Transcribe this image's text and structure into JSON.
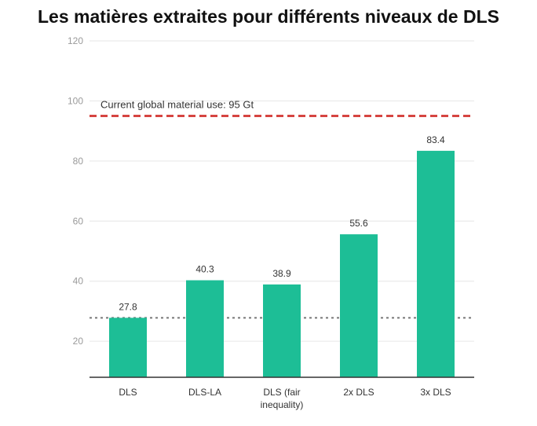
{
  "chart_data": {
    "type": "bar",
    "title": "Les matières extraites pour différents niveaux de DLS",
    "xlabel": "",
    "ylabel": "",
    "categories": [
      [
        "DLS"
      ],
      [
        "DLS-LA"
      ],
      [
        "DLS (fair",
        "inequality)"
      ],
      [
        "2x DLS"
      ],
      [
        "3x DLS"
      ]
    ],
    "values": [
      27.8,
      40.3,
      38.9,
      55.6,
      83.4
    ],
    "value_labels": [
      "27.8",
      "40.3",
      "38.9",
      "55.6",
      "83.4"
    ],
    "yticks": [
      "20",
      "40",
      "60",
      "80",
      "100",
      "120"
    ],
    "ylim": [
      8,
      120
    ],
    "reference_lines": [
      {
        "value": 95,
        "label": "Current global material use: 95 Gt",
        "style": "dashed",
        "color": "#d64541"
      },
      {
        "value": 27.8,
        "label": "",
        "style": "dotted",
        "color": "#777777"
      }
    ],
    "bar_color": "#1dbe96",
    "grid": true
  }
}
